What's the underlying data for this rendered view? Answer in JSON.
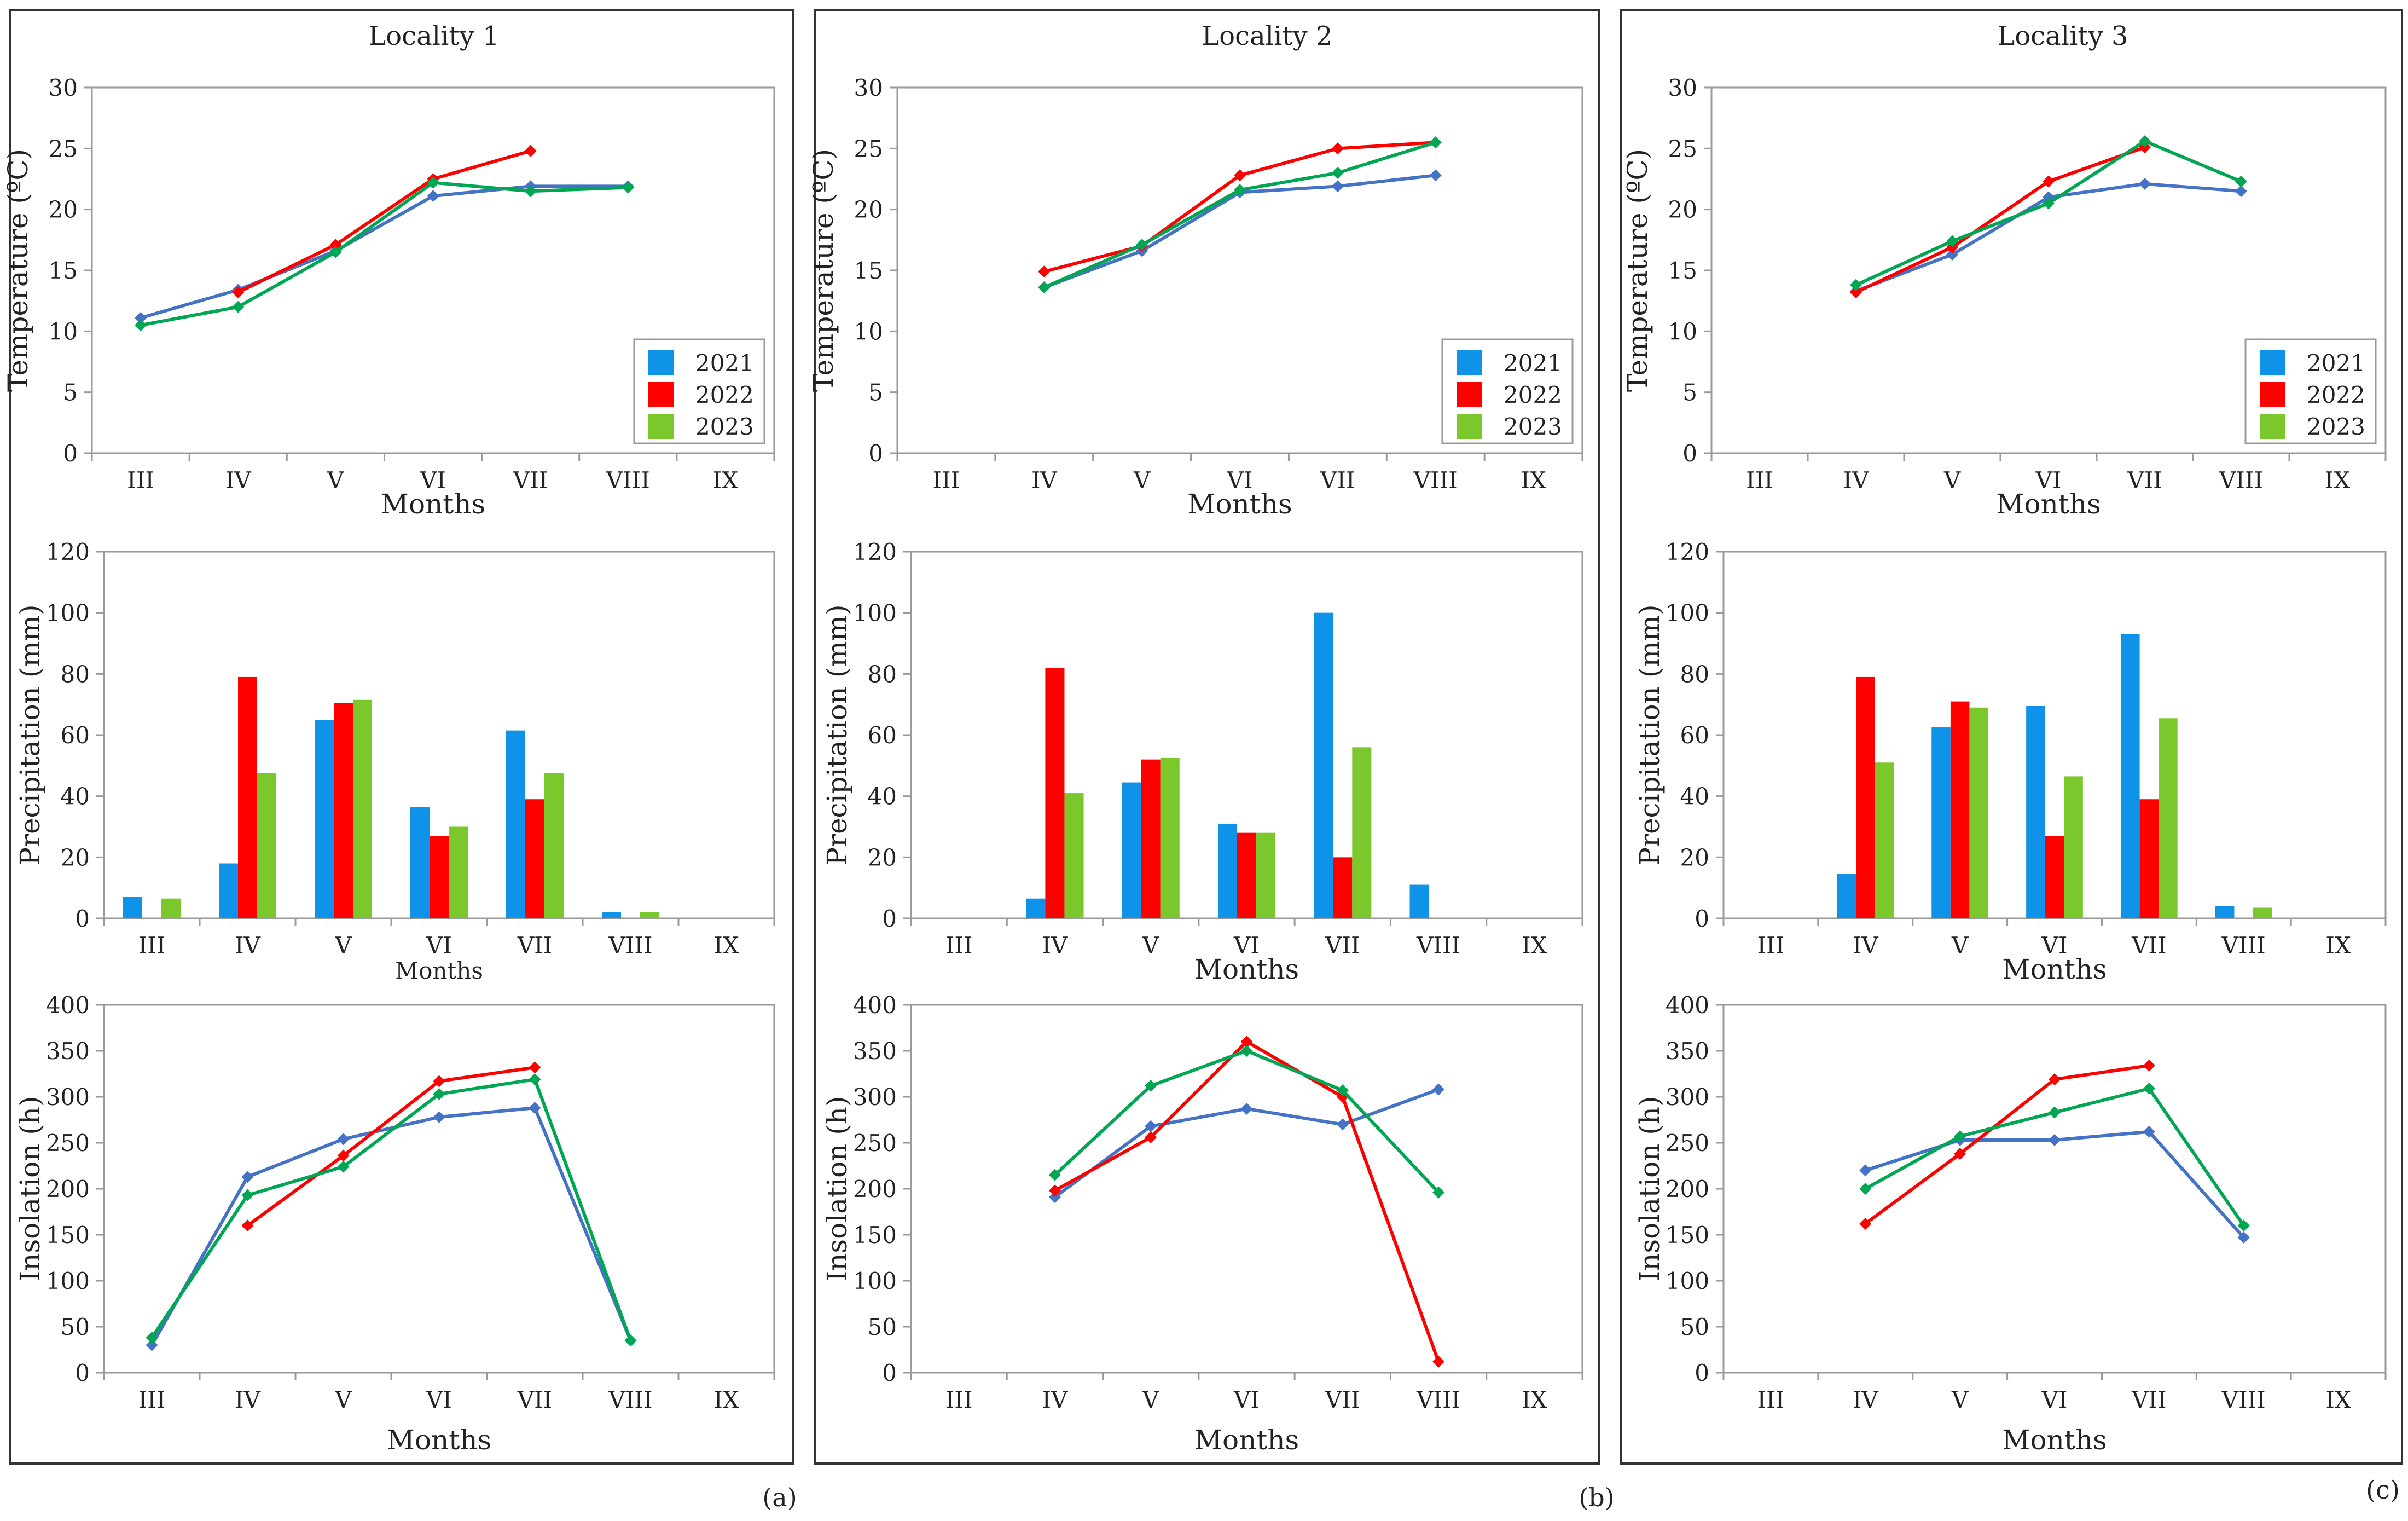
{
  "figure_labels": [
    "(a)",
    "(b)",
    "(c)"
  ],
  "colors": {
    "2021": "#0f93e8",
    "2022": "#ff0000",
    "2023": "#7bc82c",
    "line_2021": "#4472c4",
    "line_2022": "#ff0000",
    "line_2023": "#00a651"
  },
  "chart_data": [
    {
      "id": "l1-temp",
      "panel": 0,
      "panel_title": "Locality 1",
      "type": "line",
      "categories": [
        "III",
        "IV",
        "V",
        "VI",
        "VII",
        "VIII",
        "IX"
      ],
      "xlabel": "Months",
      "ylabel": "Temperature (ºC)",
      "ylim": [
        0,
        30
      ],
      "yticks": [
        0,
        5,
        10,
        15,
        20,
        25,
        30
      ],
      "legend": {
        "position": "bottom-right",
        "entries": [
          "2021",
          "2022",
          "2023"
        ]
      },
      "series": [
        {
          "name": "2021",
          "values": [
            11.1,
            13.4,
            16.6,
            21.1,
            21.9,
            21.9,
            null
          ]
        },
        {
          "name": "2022",
          "values": [
            null,
            13.2,
            17.1,
            22.5,
            24.8,
            null,
            null
          ]
        },
        {
          "name": "2023",
          "values": [
            10.5,
            12.0,
            16.5,
            22.2,
            21.5,
            21.8,
            null
          ]
        }
      ]
    },
    {
      "id": "l1-precip",
      "panel": 0,
      "type": "bar",
      "categories": [
        "III",
        "IV",
        "V",
        "VI",
        "VII",
        "VIII",
        "IX"
      ],
      "xlabel": "Months",
      "ylabel": "Precipitation (mm)",
      "ylim": [
        0,
        120
      ],
      "yticks": [
        0,
        20,
        40,
        60,
        80,
        100,
        120
      ],
      "series": [
        {
          "name": "2021",
          "values": [
            7,
            18,
            65,
            36.5,
            61.5,
            2,
            0
          ]
        },
        {
          "name": "2022",
          "values": [
            0,
            79,
            70.5,
            27,
            39,
            0,
            0
          ]
        },
        {
          "name": "2023",
          "values": [
            6.5,
            47.5,
            71.5,
            30,
            47.5,
            2,
            0
          ]
        }
      ]
    },
    {
      "id": "l1-insol",
      "panel": 0,
      "type": "line",
      "categories": [
        "III",
        "IV",
        "V",
        "VI",
        "VII",
        "VIII",
        "IX"
      ],
      "xlabel": "Months",
      "ylabel": "Insolation (h)",
      "ylim": [
        0,
        400
      ],
      "yticks": [
        0,
        50,
        100,
        150,
        200,
        250,
        300,
        350,
        400
      ],
      "series": [
        {
          "name": "2021",
          "values": [
            30,
            213,
            254,
            278,
            288,
            35,
            null
          ]
        },
        {
          "name": "2022",
          "values": [
            null,
            160,
            236,
            317,
            332,
            null,
            null
          ]
        },
        {
          "name": "2023",
          "values": [
            38,
            193,
            224,
            303,
            319,
            35,
            null
          ]
        }
      ]
    },
    {
      "id": "l2-temp",
      "panel": 1,
      "panel_title": "Locality 2",
      "type": "line",
      "categories": [
        "III",
        "IV",
        "V",
        "VI",
        "VII",
        "VIII",
        "IX"
      ],
      "xlabel": "Months",
      "ylabel": "Temperature (ºC)",
      "ylim": [
        0,
        30
      ],
      "yticks": [
        0,
        5,
        10,
        15,
        20,
        25,
        30
      ],
      "legend": {
        "position": "bottom-right",
        "entries": [
          "2021",
          "2022",
          "2023"
        ]
      },
      "series": [
        {
          "name": "2021",
          "values": [
            null,
            13.6,
            16.6,
            21.4,
            21.9,
            22.8,
            null
          ]
        },
        {
          "name": "2022",
          "values": [
            null,
            14.9,
            17.0,
            22.8,
            25.0,
            25.5,
            null
          ]
        },
        {
          "name": "2023",
          "values": [
            null,
            13.6,
            17.1,
            21.6,
            23.0,
            25.5,
            null
          ]
        }
      ]
    },
    {
      "id": "l2-precip",
      "panel": 1,
      "type": "bar",
      "categories": [
        "III",
        "IV",
        "V",
        "VI",
        "VII",
        "VIII",
        "IX"
      ],
      "xlabel": "Months",
      "ylabel": "Precipitation (mm)",
      "ylim": [
        0,
        120
      ],
      "yticks": [
        0,
        20,
        40,
        60,
        80,
        100,
        120
      ],
      "series": [
        {
          "name": "2021",
          "values": [
            0,
            6.5,
            44.5,
            31,
            100,
            11,
            0
          ]
        },
        {
          "name": "2022",
          "values": [
            0,
            82,
            52,
            28,
            20,
            0,
            0
          ]
        },
        {
          "name": "2023",
          "values": [
            0,
            41,
            52.5,
            28,
            56,
            0,
            0
          ]
        }
      ]
    },
    {
      "id": "l2-insol",
      "panel": 1,
      "type": "line",
      "categories": [
        "III",
        "IV",
        "V",
        "VI",
        "VII",
        "VIII",
        "IX"
      ],
      "xlabel": "Months",
      "ylabel": "Insolation (h)",
      "ylim": [
        0,
        400
      ],
      "yticks": [
        0,
        50,
        100,
        150,
        200,
        250,
        300,
        350,
        400
      ],
      "series": [
        {
          "name": "2021",
          "values": [
            null,
            191,
            268,
            287,
            270,
            308,
            null
          ]
        },
        {
          "name": "2022",
          "values": [
            null,
            198,
            256,
            360,
            300,
            12,
            null
          ]
        },
        {
          "name": "2023",
          "values": [
            null,
            215,
            312,
            350,
            307,
            196,
            null
          ]
        }
      ]
    },
    {
      "id": "l3-temp",
      "panel": 2,
      "panel_title": "Locality 3",
      "type": "line",
      "categories": [
        "III",
        "IV",
        "V",
        "VI",
        "VII",
        "VIII",
        "IX"
      ],
      "xlabel": "Months",
      "ylabel": "Temperature (ºC)",
      "ylim": [
        0,
        30
      ],
      "yticks": [
        0,
        5,
        10,
        15,
        20,
        25,
        30
      ],
      "legend": {
        "position": "bottom-right",
        "entries": [
          "2021",
          "2022",
          "2023"
        ]
      },
      "series": [
        {
          "name": "2021",
          "values": [
            null,
            13.3,
            16.3,
            21.0,
            22.1,
            21.5,
            null
          ]
        },
        {
          "name": "2022",
          "values": [
            null,
            13.2,
            16.9,
            22.3,
            25.1,
            null,
            null
          ]
        },
        {
          "name": "2023",
          "values": [
            null,
            13.8,
            17.4,
            20.5,
            25.6,
            22.3,
            null
          ]
        }
      ]
    },
    {
      "id": "l3-precip",
      "panel": 2,
      "type": "bar",
      "categories": [
        "III",
        "IV",
        "V",
        "VI",
        "VII",
        "VIII",
        "IX"
      ],
      "xlabel": "Months",
      "ylabel": "Precipitation (mm)",
      "ylim": [
        0,
        120
      ],
      "yticks": [
        0,
        20,
        40,
        60,
        80,
        100,
        120
      ],
      "series": [
        {
          "name": "2021",
          "values": [
            0,
            14.5,
            62.5,
            69.5,
            93,
            4,
            0
          ]
        },
        {
          "name": "2022",
          "values": [
            0,
            79,
            71,
            27,
            39,
            0,
            0
          ]
        },
        {
          "name": "2023",
          "values": [
            0,
            51,
            69,
            46.5,
            65.5,
            3.5,
            0
          ]
        }
      ]
    },
    {
      "id": "l3-insol",
      "panel": 2,
      "type": "line",
      "categories": [
        "III",
        "IV",
        "V",
        "VI",
        "VII",
        "VIII",
        "IX"
      ],
      "xlabel": "Months",
      "ylabel": "Insolation (h)",
      "ylim": [
        0,
        400
      ],
      "yticks": [
        0,
        50,
        100,
        150,
        200,
        250,
        300,
        350,
        400
      ],
      "series": [
        {
          "name": "2021",
          "values": [
            null,
            220,
            253,
            253,
            262,
            147,
            null
          ]
        },
        {
          "name": "2022",
          "values": [
            null,
            162,
            238,
            319,
            334,
            null,
            null
          ]
        },
        {
          "name": "2023",
          "values": [
            null,
            200,
            257,
            283,
            309,
            160,
            null
          ]
        }
      ]
    }
  ]
}
